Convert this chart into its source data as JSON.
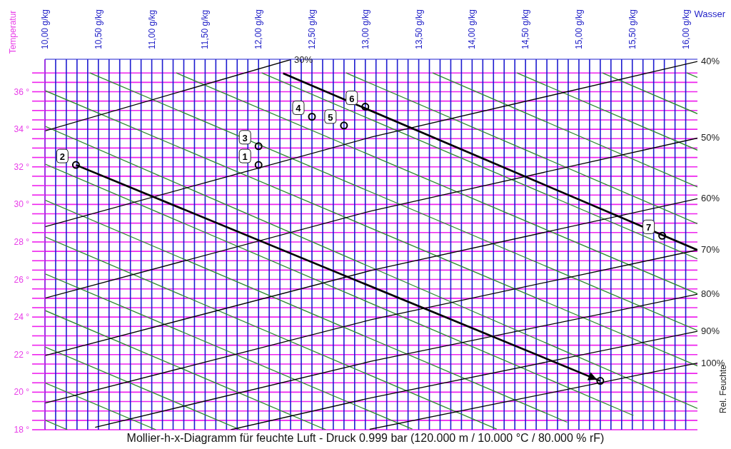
{
  "chart_data": {
    "type": "line",
    "title": "Mollier-h-x-Diagramm für feuchte Luft - Druck 0.999 bar (120.000 m / 10.000 °C / 80.000 % rF)",
    "xlabel": "Wasser",
    "ylabel": "Temperatur",
    "y2label": "Rel. Feuchte",
    "xlim": [
      10,
      16.11
    ],
    "ylim": [
      18,
      37.73
    ],
    "xticks": [
      {
        "value": 10,
        "label": "10,00 g/kg"
      },
      {
        "value": 10.1,
        "label": null
      },
      {
        "value": 10.2,
        "label": null
      },
      {
        "value": 10.3,
        "label": null
      },
      {
        "value": 10.4,
        "label": null
      },
      {
        "value": 10.5,
        "label": "10,50 g/kg"
      },
      {
        "value": 10.6,
        "label": null
      },
      {
        "value": 10.7,
        "label": null
      },
      {
        "value": 10.8,
        "label": null
      },
      {
        "value": 10.9,
        "label": null
      },
      {
        "value": 11,
        "label": "11,00 g/kg"
      },
      {
        "value": 11.1,
        "label": null
      },
      {
        "value": 11.2,
        "label": null
      },
      {
        "value": 11.3,
        "label": null
      },
      {
        "value": 11.4,
        "label": null
      },
      {
        "value": 11.5,
        "label": "11,50 g/kg"
      },
      {
        "value": 11.6,
        "label": null
      },
      {
        "value": 11.7,
        "label": null
      },
      {
        "value": 11.8,
        "label": null
      },
      {
        "value": 11.9,
        "label": null
      },
      {
        "value": 12,
        "label": "12,00 g/kg"
      },
      {
        "value": 12.1,
        "label": null
      },
      {
        "value": 12.2,
        "label": null
      },
      {
        "value": 12.3,
        "label": null
      },
      {
        "value": 12.4,
        "label": null
      },
      {
        "value": 12.5,
        "label": "12,50 g/kg"
      },
      {
        "value": 12.6,
        "label": null
      },
      {
        "value": 12.7,
        "label": null
      },
      {
        "value": 12.8,
        "label": null
      },
      {
        "value": 12.9,
        "label": null
      },
      {
        "value": 13,
        "label": "13,00 g/kg"
      },
      {
        "value": 13.1,
        "label": null
      },
      {
        "value": 13.2,
        "label": null
      },
      {
        "value": 13.3,
        "label": null
      },
      {
        "value": 13.4,
        "label": null
      },
      {
        "value": 13.5,
        "label": "13,50 g/kg"
      },
      {
        "value": 13.6,
        "label": null
      },
      {
        "value": 13.7,
        "label": null
      },
      {
        "value": 13.8,
        "label": null
      },
      {
        "value": 13.9,
        "label": null
      },
      {
        "value": 14,
        "label": "14,00 g/kg"
      },
      {
        "value": 14.1,
        "label": null
      },
      {
        "value": 14.2,
        "label": null
      },
      {
        "value": 14.3,
        "label": null
      },
      {
        "value": 14.4,
        "label": null
      },
      {
        "value": 14.5,
        "label": "14,50 g/kg"
      },
      {
        "value": 14.6,
        "label": null
      },
      {
        "value": 14.7,
        "label": null
      },
      {
        "value": 14.8,
        "label": null
      },
      {
        "value": 14.9,
        "label": null
      },
      {
        "value": 15,
        "label": "15,00 g/kg"
      },
      {
        "value": 15.1,
        "label": null
      },
      {
        "value": 15.2,
        "label": null
      },
      {
        "value": 15.3,
        "label": null
      },
      {
        "value": 15.4,
        "label": null
      },
      {
        "value": 15.5,
        "label": "15,50 g/kg"
      },
      {
        "value": 15.6,
        "label": null
      },
      {
        "value": 15.7,
        "label": null
      },
      {
        "value": 15.8,
        "label": null
      },
      {
        "value": 15.9,
        "label": null
      },
      {
        "value": 16,
        "label": "16,00 g/kg"
      }
    ],
    "yticks": [
      {
        "value": 18,
        "label": "18 °"
      },
      {
        "value": 18.5,
        "label": null
      },
      {
        "value": 19,
        "label": null
      },
      {
        "value": 19.5,
        "label": null
      },
      {
        "value": 20,
        "label": "20 °"
      },
      {
        "value": 20.5,
        "label": null
      },
      {
        "value": 21,
        "label": null
      },
      {
        "value": 21.5,
        "label": null
      },
      {
        "value": 22,
        "label": "22 °"
      },
      {
        "value": 22.5,
        "label": null
      },
      {
        "value": 23,
        "label": null
      },
      {
        "value": 23.5,
        "label": null
      },
      {
        "value": 24,
        "label": "24 °"
      },
      {
        "value": 24.5,
        "label": null
      },
      {
        "value": 25,
        "label": null
      },
      {
        "value": 25.5,
        "label": null
      },
      {
        "value": 26,
        "label": "26 °"
      },
      {
        "value": 26.5,
        "label": null
      },
      {
        "value": 27,
        "label": null
      },
      {
        "value": 27.5,
        "label": null
      },
      {
        "value": 28,
        "label": "28 °"
      },
      {
        "value": 28.5,
        "label": null
      },
      {
        "value": 29,
        "label": null
      },
      {
        "value": 29.5,
        "label": null
      },
      {
        "value": 30,
        "label": "30 °"
      },
      {
        "value": 30.5,
        "label": null
      },
      {
        "value": 31,
        "label": null
      },
      {
        "value": 31.5,
        "label": null
      },
      {
        "value": 32,
        "label": "32 °"
      },
      {
        "value": 32.5,
        "label": null
      },
      {
        "value": 33,
        "label": null
      },
      {
        "value": 33.5,
        "label": null
      },
      {
        "value": 34,
        "label": "34 °"
      },
      {
        "value": 34.5,
        "label": null
      },
      {
        "value": 35,
        "label": null
      },
      {
        "value": 35.5,
        "label": null
      },
      {
        "value": 36,
        "label": "36 °"
      },
      {
        "value": 36.5,
        "label": null
      },
      {
        "value": 37,
        "label": null
      }
    ],
    "grid": true,
    "legend": false,
    "series": [
      {
        "type": "line",
        "color": "#2e8b2e",
        "x": [
          10,
          10.21
        ],
        "values": [
          18.51,
          18
        ]
      },
      {
        "type": "line",
        "color": "#2e8b2e",
        "x": [
          10,
          11.04
        ],
        "values": [
          20.5,
          18
        ]
      },
      {
        "type": "line",
        "color": "#2e8b2e",
        "x": [
          10,
          11.83
        ],
        "values": [
          22.41,
          18
        ]
      },
      {
        "type": "line",
        "color": "#2e8b2e",
        "x": [
          10,
          12.63
        ],
        "values": [
          24.35,
          18
        ]
      },
      {
        "type": "line",
        "color": "#2e8b2e",
        "x": [
          10,
          13.44
        ],
        "values": [
          26.3,
          18.03
        ]
      },
      {
        "type": "line",
        "color": "#2e8b2e",
        "x": [
          10,
          14.23
        ],
        "values": [
          28.27,
          18.03
        ]
      },
      {
        "type": "line",
        "color": "#2e8b2e",
        "x": [
          10,
          14.89
        ],
        "values": [
          30.23,
          18.4
        ]
      },
      {
        "type": "line",
        "color": "#2e8b2e",
        "x": [
          10,
          15.51
        ],
        "values": [
          32.15,
          18.76
        ]
      },
      {
        "type": "line",
        "color": "#2e8b2e",
        "x": [
          10,
          16.11
        ],
        "values": [
          34.16,
          19.13
        ]
      },
      {
        "type": "line",
        "color": "#2e8b2e",
        "x": [
          10,
          16.11
        ],
        "values": [
          36.06,
          21.4
        ]
      },
      {
        "type": "line",
        "color": "#2e8b2e",
        "x": [
          10.42,
          16.11
        ],
        "values": [
          37,
          23.29
        ]
      },
      {
        "type": "line",
        "color": "#2e8b2e",
        "x": [
          11.23,
          16.11
        ],
        "values": [
          37,
          25.24
        ]
      },
      {
        "type": "line",
        "color": "#2e8b2e",
        "x": [
          12.03,
          16.11
        ],
        "values": [
          37,
          27.1
        ]
      },
      {
        "type": "line",
        "color": "#2e8b2e",
        "x": [
          12.82,
          16.11
        ],
        "values": [
          37,
          28.97
        ]
      },
      {
        "type": "line",
        "color": "#2e8b2e",
        "x": [
          13.63,
          16.11
        ],
        "values": [
          37,
          30.93
        ]
      },
      {
        "type": "line",
        "color": "#2e8b2e",
        "x": [
          14.42,
          16.11
        ],
        "values": [
          37,
          32.89
        ]
      },
      {
        "type": "line",
        "color": "#2e8b2e",
        "x": [
          15.22,
          16.11
        ],
        "values": [
          37,
          34.83
        ]
      },
      {
        "type": "line",
        "color": "#2e8b2e",
        "x": [
          16.01,
          16.11
        ],
        "values": [
          37,
          36.76
        ]
      },
      {
        "name": "30%",
        "type": "line",
        "color": "#000000",
        "x": [
          10,
          12.3
        ],
        "values": [
          33.91,
          37.71
        ]
      },
      {
        "name": "40%",
        "type": "line",
        "color": "#000000",
        "x": [
          10,
          13.06,
          16.11
        ],
        "values": [
          28.81,
          33.59,
          37.61
        ]
      },
      {
        "name": "50%",
        "type": "line",
        "color": "#000000",
        "x": [
          10,
          13.06,
          16.11
        ],
        "values": [
          25.01,
          29.66,
          33.53
        ]
      },
      {
        "name": "60%",
        "type": "line",
        "color": "#000000",
        "x": [
          10,
          13.06,
          16.11
        ],
        "values": [
          21.95,
          26.49,
          30.3
        ]
      },
      {
        "name": "70%",
        "type": "line",
        "color": "#000000",
        "x": [
          10,
          13.06,
          16.11
        ],
        "values": [
          19.42,
          23.87,
          27.57
        ]
      },
      {
        "name": "80%",
        "type": "line",
        "color": "#000000",
        "x": [
          10.47,
          13.06,
          16.11
        ],
        "values": [
          18.13,
          21.65,
          25.22
        ]
      },
      {
        "name": "90%",
        "type": "line",
        "color": "#000000",
        "x": [
          11.74,
          13.06,
          16.11
        ],
        "values": [
          18,
          19.71,
          23.24
        ]
      },
      {
        "name": "100%",
        "type": "line",
        "color": "#000000",
        "x": [
          13.04,
          16.11
        ],
        "values": [
          18.02,
          21.55
        ]
      },
      {
        "type": "line",
        "color": "#000000",
        "x": [
          10.29,
          15.2
        ],
        "values": [
          32.1,
          20.6
        ]
      },
      {
        "type": "line",
        "color": "#000000",
        "x": [
          12.23,
          16.11
        ],
        "values": [
          36.98,
          27.57
        ]
      },
      {
        "type": "scatter",
        "color": "#000000",
        "marker": "circle",
        "x": [
          12.0,
          10.29,
          12.0,
          12.5,
          12.8,
          13.0,
          15.78,
          15.2
        ],
        "values": [
          32.1,
          32.1,
          33.1,
          34.67,
          34.2,
          35.2,
          28.33,
          20.6
        ]
      }
    ],
    "annotations": [
      {
        "text": "1",
        "x": 12.0,
        "y": 32.1
      },
      {
        "text": "2",
        "x": 10.29,
        "y": 32.1
      },
      {
        "text": "3",
        "x": 12.0,
        "y": 33.1
      },
      {
        "text": "4",
        "x": 12.5,
        "y": 34.67
      },
      {
        "text": "5",
        "x": 12.8,
        "y": 34.2
      },
      {
        "text": "6",
        "x": 13.0,
        "y": 35.2
      },
      {
        "text": "7",
        "x": 15.78,
        "y": 28.33
      }
    ]
  }
}
